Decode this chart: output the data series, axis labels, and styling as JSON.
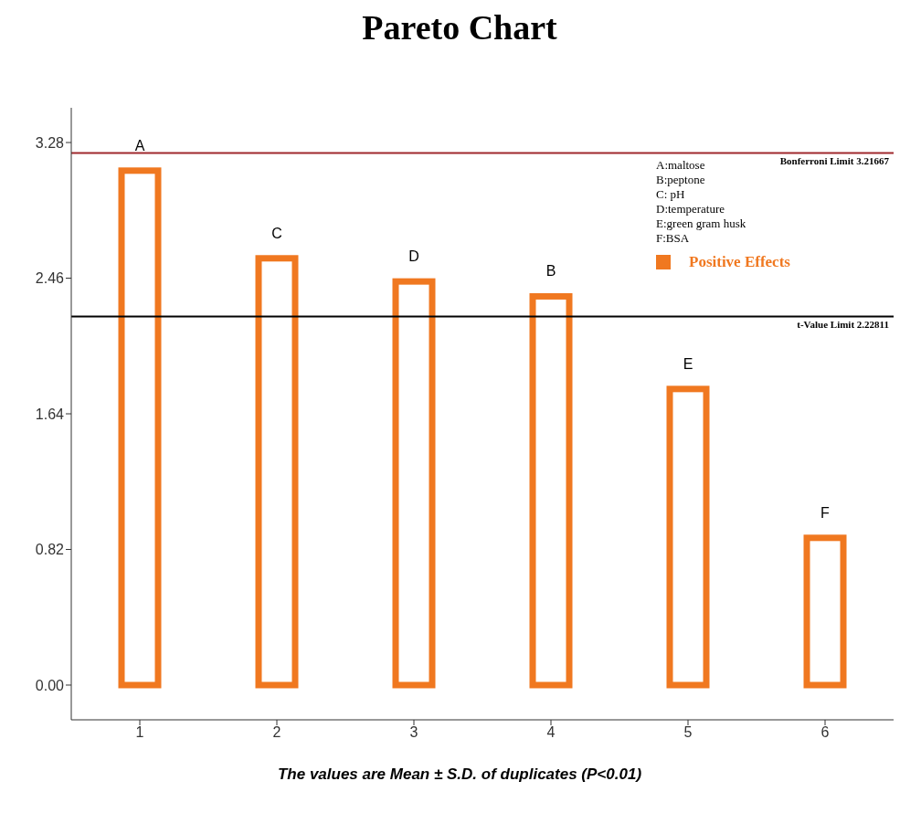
{
  "chart_data": {
    "type": "bar",
    "title": "Pareto Chart",
    "categories": [
      "1",
      "2",
      "3",
      "4",
      "5",
      "6"
    ],
    "series": [
      {
        "name": "Positive Effects",
        "color": "#f07820",
        "values": [
          3.11,
          2.58,
          2.44,
          2.35,
          1.79,
          0.89
        ]
      }
    ],
    "ylim": [
      -0.21,
      3.49
    ],
    "yticks": [
      {
        "value": 0,
        "label": "0.00"
      },
      0.82,
      1.64,
      2.46,
      3.28
    ],
    "grid": false,
    "legend": "top right",
    "ref_lines": [
      {
        "axis": "y",
        "value": 3.21667,
        "label": "Bonferroni Limit  3.21667",
        "color": "#a0282d"
      },
      {
        "axis": "y",
        "value": 2.22811,
        "label": "t-Value Limit 2.22811",
        "color": "#000000"
      }
    ],
    "annotations": [
      {
        "text": "A",
        "x": "1",
        "y": 3.11
      },
      {
        "text": "C",
        "x": "2",
        "y": 2.58
      },
      {
        "text": "D",
        "x": "3",
        "y": 2.44
      },
      {
        "text": "B",
        "x": "4",
        "y": 2.35
      },
      {
        "text": "E",
        "x": "5",
        "y": 1.79
      },
      {
        "text": "F",
        "x": "6",
        "y": 0.89
      },
      "A:maltose",
      "B:peptone",
      "C: pH",
      "D:temperature",
      "E:green gram husk",
      "F:BSA",
      "The values are Mean ± S.D. of duplicates (P<0.01)"
    ]
  }
}
